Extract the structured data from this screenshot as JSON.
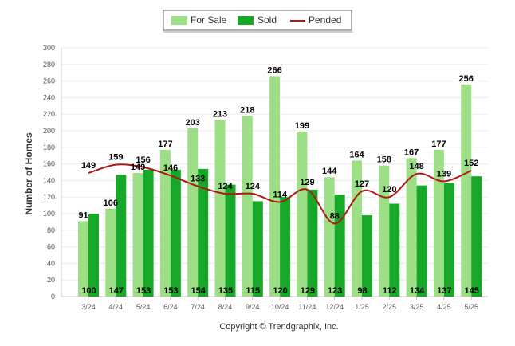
{
  "chart_data": {
    "type": "bar",
    "ylabel": "Number of Homes",
    "ylim": [
      0,
      300
    ],
    "yticks": [
      0,
      20,
      40,
      60,
      80,
      100,
      120,
      140,
      160,
      180,
      200,
      220,
      240,
      260,
      280,
      300
    ],
    "categories": [
      "3/24",
      "4/24",
      "5/24",
      "6/24",
      "7/24",
      "8/24",
      "9/24",
      "10/24",
      "11/24",
      "12/24",
      "1/25",
      "2/25",
      "3/25",
      "4/25",
      "5/25"
    ],
    "series": [
      {
        "name": "For Sale",
        "kind": "bar",
        "color": "#9ddf86",
        "values": [
          91,
          106,
          149,
          177,
          203,
          213,
          218,
          266,
          199,
          144,
          164,
          158,
          167,
          177,
          256
        ]
      },
      {
        "name": "Sold",
        "kind": "bar",
        "color": "#17a82a",
        "values": [
          100,
          147,
          153,
          153,
          154,
          135,
          115,
          120,
          129,
          123,
          98,
          112,
          134,
          137,
          145
        ]
      },
      {
        "name": "Pended",
        "kind": "line",
        "color": "#b01717",
        "values": [
          149,
          159,
          156,
          146,
          133,
          124,
          124,
          114,
          129,
          88,
          127,
          120,
          148,
          139,
          152
        ]
      }
    ],
    "legend_position": "top-center",
    "grid": true
  },
  "credit": "Copyright © Trendgraphix, Inc."
}
